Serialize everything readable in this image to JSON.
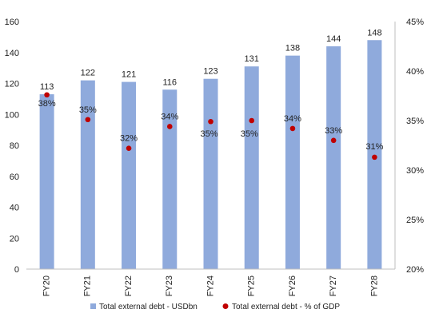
{
  "chart_data": {
    "type": "bar",
    "categories": [
      "FY20",
      "FY21",
      "FY22",
      "FY23",
      "FY24",
      "FY25",
      "FY26",
      "FY27",
      "FY28"
    ],
    "series": [
      {
        "name": "Total external debt - USDbn",
        "type": "bar",
        "axis": "left",
        "color": "#8faadc",
        "values": [
          113,
          122,
          121,
          116,
          123,
          131,
          138,
          144,
          148
        ],
        "labels": [
          "113",
          "122",
          "121",
          "116",
          "123",
          "131",
          "138",
          "144",
          "148"
        ]
      },
      {
        "name": "Total external debt - % of GDP",
        "type": "scatter",
        "axis": "right",
        "color": "#c00000",
        "values": [
          37.6,
          35.1,
          32.2,
          34.4,
          34.9,
          35.0,
          34.2,
          33.0,
          31.3
        ],
        "labels": [
          "38%",
          "35%",
          "32%",
          "34%",
          "35%",
          "35%",
          "34%",
          "33%",
          "31%"
        ]
      }
    ],
    "y_left": {
      "min": 0,
      "max": 160,
      "ticks": [
        "0",
        "20",
        "40",
        "60",
        "80",
        "100",
        "120",
        "140",
        "160"
      ]
    },
    "y_right": {
      "min": 20,
      "max": 45,
      "ticks": [
        "20%",
        "25%",
        "30%",
        "35%",
        "40%",
        "45%"
      ]
    },
    "grid": false,
    "legend_position": "bottom",
    "title": "",
    "xlabel": "",
    "ylabel": ""
  }
}
